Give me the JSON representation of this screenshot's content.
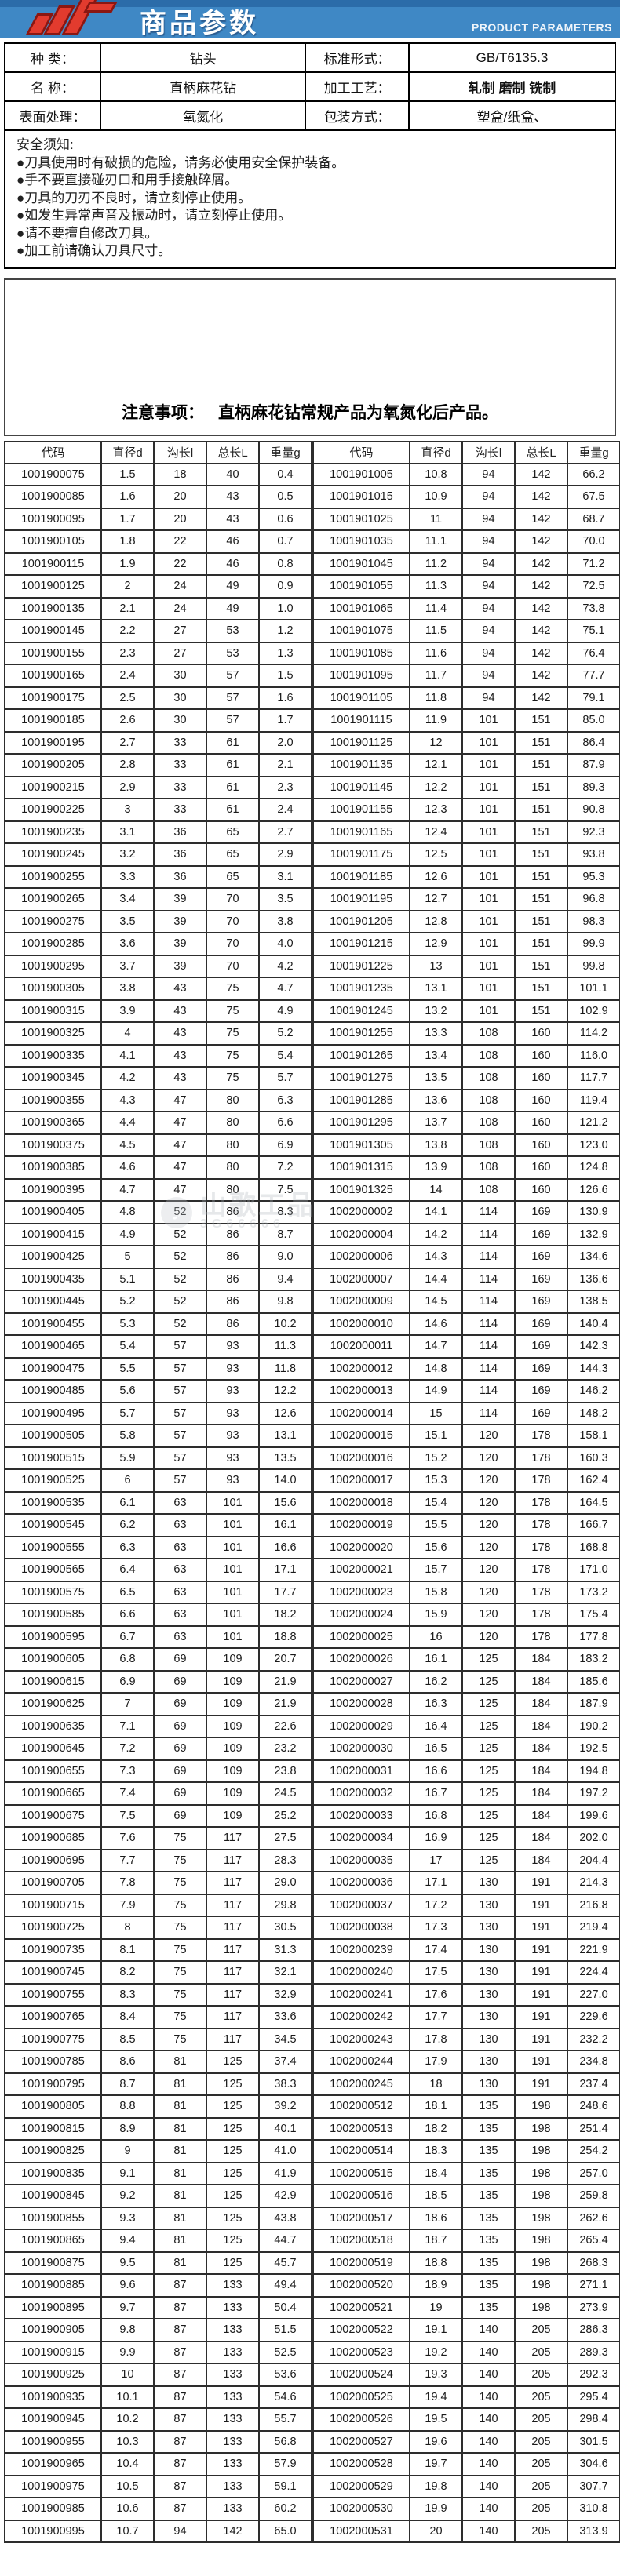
{
  "banner": {
    "title": "商品参数",
    "subtitle": "PRODUCT PARAMETERS",
    "bar_color": "#3f88c5",
    "bar_top_color": "#2b6ca9",
    "logo_color": "#e23b2e"
  },
  "params": {
    "fields": [
      {
        "label": "种  类：",
        "value": "钻头"
      },
      {
        "label": "标准形式：",
        "value": "GB/T6135.3"
      },
      {
        "label": "名  称：",
        "value": "直柄麻花钻"
      },
      {
        "label": "加工工艺：",
        "value": "轧制 磨制 铣制"
      },
      {
        "label": "表面处理：",
        "value": "氧氮化"
      },
      {
        "label": "包装方式：",
        "value": "塑盒/纸盒、"
      }
    ]
  },
  "safety": {
    "title": "安全须知:",
    "items": [
      "●刀具使用时有破损的危险，请务必使用安全保护装备。",
      "●手不要直接碰刃口和用手接触碎屑。",
      "●刀具的刀刃不良时，请立刻停止使用。",
      "●如发生异常声音及振动时，请立刻停止使用。",
      "●请不要擅自修改刀具。",
      "●加工前请确认刀具尺寸。"
    ]
  },
  "notice": {
    "label": "注意事项：",
    "text": "直柄麻花钻常规产品为氧氮化后产品。"
  },
  "watermark": {
    "icon": "music-note",
    "line1": "山歌工品",
    "line2": "3G66666"
  },
  "table": {
    "headers": [
      "代码",
      "直径d",
      "沟长l",
      "总长L",
      "重量g"
    ],
    "left_rows": [
      [
        "1001900075",
        "1.5",
        "18",
        "40",
        "0.4"
      ],
      [
        "1001900085",
        "1.6",
        "20",
        "43",
        "0.5"
      ],
      [
        "1001900095",
        "1.7",
        "20",
        "43",
        "0.6"
      ],
      [
        "1001900105",
        "1.8",
        "22",
        "46",
        "0.7"
      ],
      [
        "1001900115",
        "1.9",
        "22",
        "46",
        "0.8"
      ],
      [
        "1001900125",
        "2",
        "24",
        "49",
        "0.9"
      ],
      [
        "1001900135",
        "2.1",
        "24",
        "49",
        "1.0"
      ],
      [
        "1001900145",
        "2.2",
        "27",
        "53",
        "1.2"
      ],
      [
        "1001900155",
        "2.3",
        "27",
        "53",
        "1.3"
      ],
      [
        "1001900165",
        "2.4",
        "30",
        "57",
        "1.5"
      ],
      [
        "1001900175",
        "2.5",
        "30",
        "57",
        "1.6"
      ],
      [
        "1001900185",
        "2.6",
        "30",
        "57",
        "1.7"
      ],
      [
        "1001900195",
        "2.7",
        "33",
        "61",
        "2.0"
      ],
      [
        "1001900205",
        "2.8",
        "33",
        "61",
        "2.1"
      ],
      [
        "1001900215",
        "2.9",
        "33",
        "61",
        "2.3"
      ],
      [
        "1001900225",
        "3",
        "33",
        "61",
        "2.4"
      ],
      [
        "1001900235",
        "3.1",
        "36",
        "65",
        "2.7"
      ],
      [
        "1001900245",
        "3.2",
        "36",
        "65",
        "2.9"
      ],
      [
        "1001900255",
        "3.3",
        "36",
        "65",
        "3.1"
      ],
      [
        "1001900265",
        "3.4",
        "39",
        "70",
        "3.5"
      ],
      [
        "1001900275",
        "3.5",
        "39",
        "70",
        "3.8"
      ],
      [
        "1001900285",
        "3.6",
        "39",
        "70",
        "4.0"
      ],
      [
        "1001900295",
        "3.7",
        "39",
        "70",
        "4.2"
      ],
      [
        "1001900305",
        "3.8",
        "43",
        "75",
        "4.7"
      ],
      [
        "1001900315",
        "3.9",
        "43",
        "75",
        "4.9"
      ],
      [
        "1001900325",
        "4",
        "43",
        "75",
        "5.2"
      ],
      [
        "1001900335",
        "4.1",
        "43",
        "75",
        "5.4"
      ],
      [
        "1001900345",
        "4.2",
        "43",
        "75",
        "5.7"
      ],
      [
        "1001900355",
        "4.3",
        "47",
        "80",
        "6.3"
      ],
      [
        "1001900365",
        "4.4",
        "47",
        "80",
        "6.6"
      ],
      [
        "1001900375",
        "4.5",
        "47",
        "80",
        "6.9"
      ],
      [
        "1001900385",
        "4.6",
        "47",
        "80",
        "7.2"
      ],
      [
        "1001900395",
        "4.7",
        "47",
        "80",
        "7.5"
      ],
      [
        "1001900405",
        "4.8",
        "52",
        "86",
        "8.3"
      ],
      [
        "1001900415",
        "4.9",
        "52",
        "86",
        "8.7"
      ],
      [
        "1001900425",
        "5",
        "52",
        "86",
        "9.0"
      ],
      [
        "1001900435",
        "5.1",
        "52",
        "86",
        "9.4"
      ],
      [
        "1001900445",
        "5.2",
        "52",
        "86",
        "9.8"
      ],
      [
        "1001900455",
        "5.3",
        "52",
        "86",
        "10.2"
      ],
      [
        "1001900465",
        "5.4",
        "57",
        "93",
        "11.3"
      ],
      [
        "1001900475",
        "5.5",
        "57",
        "93",
        "11.8"
      ],
      [
        "1001900485",
        "5.6",
        "57",
        "93",
        "12.2"
      ],
      [
        "1001900495",
        "5.7",
        "57",
        "93",
        "12.6"
      ],
      [
        "1001900505",
        "5.8",
        "57",
        "93",
        "13.1"
      ],
      [
        "1001900515",
        "5.9",
        "57",
        "93",
        "13.5"
      ],
      [
        "1001900525",
        "6",
        "57",
        "93",
        "14.0"
      ],
      [
        "1001900535",
        "6.1",
        "63",
        "101",
        "15.6"
      ],
      [
        "1001900545",
        "6.2",
        "63",
        "101",
        "16.1"
      ],
      [
        "1001900555",
        "6.3",
        "63",
        "101",
        "16.6"
      ],
      [
        "1001900565",
        "6.4",
        "63",
        "101",
        "17.1"
      ],
      [
        "1001900575",
        "6.5",
        "63",
        "101",
        "17.7"
      ],
      [
        "1001900585",
        "6.6",
        "63",
        "101",
        "18.2"
      ],
      [
        "1001900595",
        "6.7",
        "63",
        "101",
        "18.8"
      ],
      [
        "1001900605",
        "6.8",
        "69",
        "109",
        "20.7"
      ],
      [
        "1001900615",
        "6.9",
        "69",
        "109",
        "21.9"
      ],
      [
        "1001900625",
        "7",
        "69",
        "109",
        "21.9"
      ],
      [
        "1001900635",
        "7.1",
        "69",
        "109",
        "22.6"
      ],
      [
        "1001900645",
        "7.2",
        "69",
        "109",
        "23.2"
      ],
      [
        "1001900655",
        "7.3",
        "69",
        "109",
        "23.8"
      ],
      [
        "1001900665",
        "7.4",
        "69",
        "109",
        "24.5"
      ],
      [
        "1001900675",
        "7.5",
        "69",
        "109",
        "25.2"
      ],
      [
        "1001900685",
        "7.6",
        "75",
        "117",
        "27.5"
      ],
      [
        "1001900695",
        "7.7",
        "75",
        "117",
        "28.3"
      ],
      [
        "1001900705",
        "7.8",
        "75",
        "117",
        "29.0"
      ],
      [
        "1001900715",
        "7.9",
        "75",
        "117",
        "29.8"
      ],
      [
        "1001900725",
        "8",
        "75",
        "117",
        "30.5"
      ],
      [
        "1001900735",
        "8.1",
        "75",
        "117",
        "31.3"
      ],
      [
        "1001900745",
        "8.2",
        "75",
        "117",
        "32.1"
      ],
      [
        "1001900755",
        "8.3",
        "75",
        "117",
        "32.9"
      ],
      [
        "1001900765",
        "8.4",
        "75",
        "117",
        "33.6"
      ],
      [
        "1001900775",
        "8.5",
        "75",
        "117",
        "34.5"
      ],
      [
        "1001900785",
        "8.6",
        "81",
        "125",
        "37.4"
      ],
      [
        "1001900795",
        "8.7",
        "81",
        "125",
        "38.3"
      ],
      [
        "1001900805",
        "8.8",
        "81",
        "125",
        "39.2"
      ],
      [
        "1001900815",
        "8.9",
        "81",
        "125",
        "40.1"
      ],
      [
        "1001900825",
        "9",
        "81",
        "125",
        "41.0"
      ],
      [
        "1001900835",
        "9.1",
        "81",
        "125",
        "41.9"
      ],
      [
        "1001900845",
        "9.2",
        "81",
        "125",
        "42.9"
      ],
      [
        "1001900855",
        "9.3",
        "81",
        "125",
        "43.8"
      ],
      [
        "1001900865",
        "9.4",
        "81",
        "125",
        "44.7"
      ],
      [
        "1001900875",
        "9.5",
        "81",
        "125",
        "45.7"
      ],
      [
        "1001900885",
        "9.6",
        "87",
        "133",
        "49.4"
      ],
      [
        "1001900895",
        "9.7",
        "87",
        "133",
        "50.4"
      ],
      [
        "1001900905",
        "9.8",
        "87",
        "133",
        "51.5"
      ],
      [
        "1001900915",
        "9.9",
        "87",
        "133",
        "52.5"
      ],
      [
        "1001900925",
        "10",
        "87",
        "133",
        "53.6"
      ],
      [
        "1001900935",
        "10.1",
        "87",
        "133",
        "54.6"
      ],
      [
        "1001900945",
        "10.2",
        "87",
        "133",
        "55.7"
      ],
      [
        "1001900955",
        "10.3",
        "87",
        "133",
        "56.8"
      ],
      [
        "1001900965",
        "10.4",
        "87",
        "133",
        "57.9"
      ],
      [
        "1001900975",
        "10.5",
        "87",
        "133",
        "59.1"
      ],
      [
        "1001900985",
        "10.6",
        "87",
        "133",
        "60.2"
      ],
      [
        "1001900995",
        "10.7",
        "94",
        "142",
        "65.0"
      ]
    ],
    "right_rows": [
      [
        "1001901005",
        "10.8",
        "94",
        "142",
        "66.2"
      ],
      [
        "1001901015",
        "10.9",
        "94",
        "142",
        "67.5"
      ],
      [
        "1001901025",
        "11",
        "94",
        "142",
        "68.7"
      ],
      [
        "1001901035",
        "11.1",
        "94",
        "142",
        "70.0"
      ],
      [
        "1001901045",
        "11.2",
        "94",
        "142",
        "71.2"
      ],
      [
        "1001901055",
        "11.3",
        "94",
        "142",
        "72.5"
      ],
      [
        "1001901065",
        "11.4",
        "94",
        "142",
        "73.8"
      ],
      [
        "1001901075",
        "11.5",
        "94",
        "142",
        "75.1"
      ],
      [
        "1001901085",
        "11.6",
        "94",
        "142",
        "76.4"
      ],
      [
        "1001901095",
        "11.7",
        "94",
        "142",
        "77.7"
      ],
      [
        "1001901105",
        "11.8",
        "94",
        "142",
        "79.1"
      ],
      [
        "1001901115",
        "11.9",
        "101",
        "151",
        "85.0"
      ],
      [
        "1001901125",
        "12",
        "101",
        "151",
        "86.4"
      ],
      [
        "1001901135",
        "12.1",
        "101",
        "151",
        "87.9"
      ],
      [
        "1001901145",
        "12.2",
        "101",
        "151",
        "89.3"
      ],
      [
        "1001901155",
        "12.3",
        "101",
        "151",
        "90.8"
      ],
      [
        "1001901165",
        "12.4",
        "101",
        "151",
        "92.3"
      ],
      [
        "1001901175",
        "12.5",
        "101",
        "151",
        "93.8"
      ],
      [
        "1001901185",
        "12.6",
        "101",
        "151",
        "95.3"
      ],
      [
        "1001901195",
        "12.7",
        "101",
        "151",
        "96.8"
      ],
      [
        "1001901205",
        "12.8",
        "101",
        "151",
        "98.3"
      ],
      [
        "1001901215",
        "12.9",
        "101",
        "151",
        "99.9"
      ],
      [
        "1001901225",
        "13",
        "101",
        "151",
        "99.8"
      ],
      [
        "1001901235",
        "13.1",
        "101",
        "151",
        "101.1"
      ],
      [
        "1001901245",
        "13.2",
        "101",
        "151",
        "102.9"
      ],
      [
        "1001901255",
        "13.3",
        "108",
        "160",
        "114.2"
      ],
      [
        "1001901265",
        "13.4",
        "108",
        "160",
        "116.0"
      ],
      [
        "1001901275",
        "13.5",
        "108",
        "160",
        "117.7"
      ],
      [
        "1001901285",
        "13.6",
        "108",
        "160",
        "119.4"
      ],
      [
        "1001901295",
        "13.7",
        "108",
        "160",
        "121.2"
      ],
      [
        "1001901305",
        "13.8",
        "108",
        "160",
        "123.0"
      ],
      [
        "1001901315",
        "13.9",
        "108",
        "160",
        "124.8"
      ],
      [
        "1001901325",
        "14",
        "108",
        "160",
        "126.6"
      ],
      [
        "1002000002",
        "14.1",
        "114",
        "169",
        "130.9"
      ],
      [
        "1002000004",
        "14.2",
        "114",
        "169",
        "132.9"
      ],
      [
        "1002000006",
        "14.3",
        "114",
        "169",
        "134.6"
      ],
      [
        "1002000007",
        "14.4",
        "114",
        "169",
        "136.6"
      ],
      [
        "1002000009",
        "14.5",
        "114",
        "169",
        "138.5"
      ],
      [
        "1002000010",
        "14.6",
        "114",
        "169",
        "140.4"
      ],
      [
        "1002000011",
        "14.7",
        "114",
        "169",
        "142.3"
      ],
      [
        "1002000012",
        "14.8",
        "114",
        "169",
        "144.3"
      ],
      [
        "1002000013",
        "14.9",
        "114",
        "169",
        "146.2"
      ],
      [
        "1002000014",
        "15",
        "114",
        "169",
        "148.2"
      ],
      [
        "1002000015",
        "15.1",
        "120",
        "178",
        "158.1"
      ],
      [
        "1002000016",
        "15.2",
        "120",
        "178",
        "160.3"
      ],
      [
        "1002000017",
        "15.3",
        "120",
        "178",
        "162.4"
      ],
      [
        "1002000018",
        "15.4",
        "120",
        "178",
        "164.5"
      ],
      [
        "1002000019",
        "15.5",
        "120",
        "178",
        "166.7"
      ],
      [
        "1002000020",
        "15.6",
        "120",
        "178",
        "168.8"
      ],
      [
        "1002000021",
        "15.7",
        "120",
        "178",
        "171.0"
      ],
      [
        "1002000023",
        "15.8",
        "120",
        "178",
        "173.2"
      ],
      [
        "1002000024",
        "15.9",
        "120",
        "178",
        "175.4"
      ],
      [
        "1002000025",
        "16",
        "120",
        "178",
        "177.8"
      ],
      [
        "1002000026",
        "16.1",
        "125",
        "184",
        "183.2"
      ],
      [
        "1002000027",
        "16.2",
        "125",
        "184",
        "185.6"
      ],
      [
        "1002000028",
        "16.3",
        "125",
        "184",
        "187.9"
      ],
      [
        "1002000029",
        "16.4",
        "125",
        "184",
        "190.2"
      ],
      [
        "1002000030",
        "16.5",
        "125",
        "184",
        "192.5"
      ],
      [
        "1002000031",
        "16.6",
        "125",
        "184",
        "194.8"
      ],
      [
        "1002000032",
        "16.7",
        "125",
        "184",
        "197.2"
      ],
      [
        "1002000033",
        "16.8",
        "125",
        "184",
        "199.6"
      ],
      [
        "1002000034",
        "16.9",
        "125",
        "184",
        "202.0"
      ],
      [
        "1002000035",
        "17",
        "125",
        "184",
        "204.4"
      ],
      [
        "1002000036",
        "17.1",
        "130",
        "191",
        "214.3"
      ],
      [
        "1002000037",
        "17.2",
        "130",
        "191",
        "216.8"
      ],
      [
        "1002000038",
        "17.3",
        "130",
        "191",
        "219.4"
      ],
      [
        "1002000239",
        "17.4",
        "130",
        "191",
        "221.9"
      ],
      [
        "1002000240",
        "17.5",
        "130",
        "191",
        "224.4"
      ],
      [
        "1002000241",
        "17.6",
        "130",
        "191",
        "227.0"
      ],
      [
        "1002000242",
        "17.7",
        "130",
        "191",
        "229.6"
      ],
      [
        "1002000243",
        "17.8",
        "130",
        "191",
        "232.2"
      ],
      [
        "1002000244",
        "17.9",
        "130",
        "191",
        "234.8"
      ],
      [
        "1002000245",
        "18",
        "130",
        "191",
        "237.4"
      ],
      [
        "1002000512",
        "18.1",
        "135",
        "198",
        "248.6"
      ],
      [
        "1002000513",
        "18.2",
        "135",
        "198",
        "251.4"
      ],
      [
        "1002000514",
        "18.3",
        "135",
        "198",
        "254.2"
      ],
      [
        "1002000515",
        "18.4",
        "135",
        "198",
        "257.0"
      ],
      [
        "1002000516",
        "18.5",
        "135",
        "198",
        "259.8"
      ],
      [
        "1002000517",
        "18.6",
        "135",
        "198",
        "262.6"
      ],
      [
        "1002000518",
        "18.7",
        "135",
        "198",
        "265.4"
      ],
      [
        "1002000519",
        "18.8",
        "135",
        "198",
        "268.3"
      ],
      [
        "1002000520",
        "18.9",
        "135",
        "198",
        "271.1"
      ],
      [
        "1002000521",
        "19",
        "135",
        "198",
        "273.9"
      ],
      [
        "1002000522",
        "19.1",
        "140",
        "205",
        "286.3"
      ],
      [
        "1002000523",
        "19.2",
        "140",
        "205",
        "289.3"
      ],
      [
        "1002000524",
        "19.3",
        "140",
        "205",
        "292.3"
      ],
      [
        "1002000525",
        "19.4",
        "140",
        "205",
        "295.4"
      ],
      [
        "1002000526",
        "19.5",
        "140",
        "205",
        "298.4"
      ],
      [
        "1002000527",
        "19.6",
        "140",
        "205",
        "301.5"
      ],
      [
        "1002000528",
        "19.7",
        "140",
        "205",
        "304.6"
      ],
      [
        "1002000529",
        "19.8",
        "140",
        "205",
        "307.7"
      ],
      [
        "1002000530",
        "19.9",
        "140",
        "205",
        "310.8"
      ],
      [
        "1002000531",
        "20",
        "140",
        "205",
        "313.9"
      ]
    ]
  }
}
